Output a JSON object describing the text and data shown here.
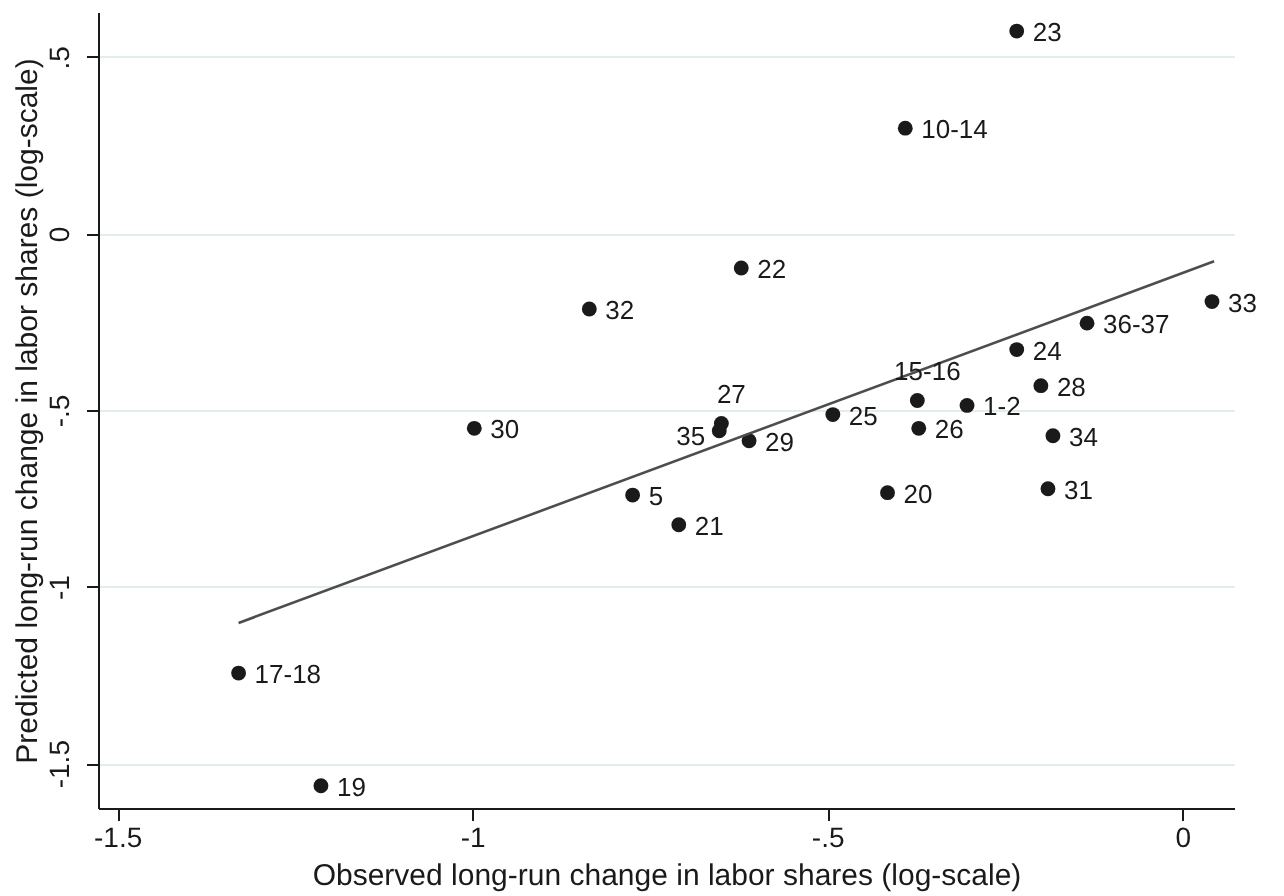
{
  "chart_data": {
    "type": "scatter",
    "xlabel": "Observed long-run change in labor shares (log-scale)",
    "ylabel": "Predicted long-run change in labor shares (log-scale)",
    "series": [
      {
        "color": "#1a1a1a",
        "marker": "circle",
        "x": [
          -0.233,
          -0.39,
          -0.621,
          -0.835,
          0.042,
          -0.134,
          -0.233,
          -0.199,
          -0.373,
          -0.303,
          -0.492,
          -0.649,
          -0.652,
          -0.61,
          -0.371,
          -0.182,
          -0.997,
          -0.774,
          -0.415,
          -0.189,
          -0.709,
          -1.329,
          -1.213
        ],
        "values": [
          0.573,
          0.298,
          -0.098,
          -0.214,
          -0.193,
          -0.254,
          -0.329,
          -0.431,
          -0.473,
          -0.487,
          -0.513,
          -0.538,
          -0.559,
          -0.587,
          -0.552,
          -0.573,
          -0.552,
          -0.741,
          -0.734,
          -0.723,
          -0.825,
          -1.245,
          -1.564
        ]
      },
      {
        "type": "line",
        "color": "#4d4d4d",
        "x": [
          -1.329,
          0.045
        ],
        "values": [
          -1.103,
          -0.079
        ]
      }
    ],
    "grid": "y",
    "xlim": [
      -1.527,
      0.073
    ],
    "ylim": [
      -1.627,
      0.627
    ],
    "xticks": [
      -1.5,
      -1,
      {
        "value": -0.5,
        "label": "-.5"
      },
      0
    ],
    "yticks": [
      -1.5,
      -1,
      {
        "value": -0.5,
        "label": "-.5"
      },
      0,
      {
        "value": 0.5,
        "label": ".5"
      }
    ],
    "annotations": [
      {
        "text": "23",
        "x": -0.233,
        "y": 0.573
      },
      {
        "text": "10-14",
        "x": -0.39,
        "y": 0.298
      },
      {
        "text": "22",
        "x": -0.621,
        "y": -0.098
      },
      {
        "text": "32",
        "x": -0.835,
        "y": -0.214
      },
      {
        "text": "33",
        "x": 0.042,
        "y": -0.193
      },
      {
        "text": "36-37",
        "x": -0.134,
        "y": -0.254
      },
      {
        "text": "24",
        "x": -0.233,
        "y": -0.329
      },
      {
        "text": "28",
        "x": -0.199,
        "y": -0.431
      },
      {
        "text": "15-16",
        "x": -0.373,
        "y": -0.473
      },
      {
        "text": "1-2",
        "x": -0.303,
        "y": -0.487
      },
      {
        "text": "25",
        "x": -0.492,
        "y": -0.513
      },
      {
        "text": "27",
        "x": -0.649,
        "y": -0.538
      },
      {
        "text": "35",
        "x": -0.652,
        "y": -0.559
      },
      {
        "text": "29",
        "x": -0.61,
        "y": -0.587
      },
      {
        "text": "26",
        "x": -0.371,
        "y": -0.552
      },
      {
        "text": "34",
        "x": -0.182,
        "y": -0.573
      },
      {
        "text": "30",
        "x": -0.997,
        "y": -0.552
      },
      {
        "text": "5",
        "x": -0.774,
        "y": -0.741
      },
      {
        "text": "20",
        "x": -0.415,
        "y": -0.734
      },
      {
        "text": "31",
        "x": -0.189,
        "y": -0.723
      },
      {
        "text": "21",
        "x": -0.709,
        "y": -0.825
      },
      {
        "text": "17-18",
        "x": -1.329,
        "y": -1.245
      },
      {
        "text": "19",
        "x": -1.213,
        "y": -1.564
      }
    ]
  }
}
